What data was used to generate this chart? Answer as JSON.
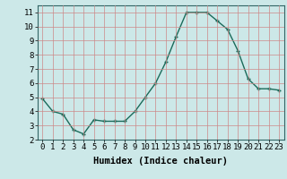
{
  "x": [
    0,
    1,
    2,
    3,
    4,
    5,
    6,
    7,
    8,
    9,
    10,
    11,
    12,
    13,
    14,
    15,
    16,
    17,
    18,
    19,
    20,
    21,
    22,
    23
  ],
  "y": [
    4.9,
    4.0,
    3.8,
    2.7,
    2.4,
    3.4,
    3.3,
    3.3,
    3.3,
    4.0,
    5.0,
    6.0,
    7.5,
    9.3,
    11.0,
    11.0,
    11.0,
    10.4,
    9.8,
    8.3,
    6.3,
    5.6,
    5.6,
    5.5
  ],
  "xlabel": "Humidex (Indice chaleur)",
  "ylim": [
    2,
    11.5
  ],
  "xlim": [
    -0.5,
    23.5
  ],
  "line_color": "#1a6b5a",
  "bg_color": "#cce8e8",
  "grid_color": "#cc8888",
  "tick_label_size": 6.5,
  "xlabel_size": 7.5,
  "yticks": [
    2,
    3,
    4,
    5,
    6,
    7,
    8,
    9,
    10,
    11
  ],
  "xticks": [
    0,
    1,
    2,
    3,
    4,
    5,
    6,
    7,
    8,
    9,
    10,
    11,
    12,
    13,
    14,
    15,
    16,
    17,
    18,
    19,
    20,
    21,
    22,
    23
  ]
}
